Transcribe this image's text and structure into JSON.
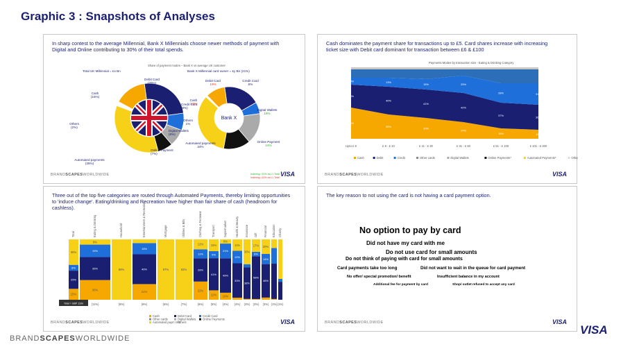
{
  "title": "Graphic 3 : Snapshots of Analyses",
  "brand": {
    "pre": "BRAND",
    "mid": "SCAPES",
    "post": "WORLDWIDE",
    "visa": "VISA"
  },
  "panel1": {
    "text": "In sharp contest to the average Millennial, Bank X Millennials choose newer methods of payment with Digital and Online contributing to 30% of their total spends.",
    "subtitle": "Share of payment modes – Bank X vs average UK customer",
    "left_title": "Total UK Millennial = £x Bn",
    "right_title": "Bank X Millennial card owner = £y Bn (21%)",
    "center_label": "Bank X",
    "legend_up": "Indexing ↑10% vs L1 Total",
    "legend_down": "Indexing ↓10% vs L1 Total",
    "left_labels": [
      {
        "name": "Debit Card",
        "val": "(25%)"
      },
      {
        "name": "Credit Card",
        "val": "(8%)"
      },
      {
        "name": "Digital Wallets",
        "val": "(8%)"
      },
      {
        "name": "Online Payment",
        "val": "(7%)"
      },
      {
        "name": "Automated payments",
        "val": "(35%)"
      },
      {
        "name": "Others",
        "val": "(2%)"
      },
      {
        "name": "Cash",
        "val": "(15%)"
      }
    ],
    "right_labels": [
      {
        "name": "Debit Card",
        "val": "19%"
      },
      {
        "name": "Credit Card",
        "val": "6%"
      },
      {
        "name": "Digital Wallets",
        "val": "16%"
      },
      {
        "name": "Online Payment",
        "val": "14%"
      },
      {
        "name": "Automated payments",
        "val": "34%"
      },
      {
        "name": "Others",
        "val": "1%"
      },
      {
        "name": "Cash",
        "val": "10%"
      }
    ]
  },
  "panel2": {
    "text": "Cash dominates the payment share for transactions up to £5. Card shares increase with increasing ticket size with Debit card dominant for transaction between £6 & £100",
    "subtitle": "Payments Modes by transaction size - Eating & Drinking Category",
    "x": [
      "Upto £ 5",
      "£ 6 - £ 10",
      "£ 11 - £ 30",
      "£ 31 - £ 50",
      "£ 51 - £ 100",
      "£ 101 - £ 200"
    ],
    "legend": [
      "Cash",
      "Debit",
      "Credit",
      "Other cards",
      "Digital Wallets",
      "Online Payments*",
      "Automated Payments*",
      "Others*"
    ]
  },
  "chart_data": [
    {
      "type": "pie",
      "title": "Total UK Millennial = £x Bn",
      "categories": [
        "Debit Card",
        "Credit Card",
        "Digital Wallets",
        "Online Payment",
        "Automated payments",
        "Others",
        "Cash"
      ],
      "values": [
        25,
        8,
        8,
        7,
        35,
        2,
        15
      ]
    },
    {
      "type": "pie",
      "title": "Bank X Millennial card owner = £y Bn (21%)",
      "categories": [
        "Debit Card",
        "Credit Card",
        "Digital Wallets",
        "Online Payment",
        "Automated payments",
        "Others",
        "Cash"
      ],
      "values": [
        19,
        6,
        16,
        14,
        34,
        1,
        10
      ]
    },
    {
      "type": "area",
      "title": "Payments Modes by transaction size - Eating & Drinking Category",
      "categories": [
        "Upto £ 5",
        "£ 6 - £ 10",
        "£ 11 - £ 30",
        "£ 31 - £ 50",
        "£ 51 - £ 100",
        "£ 101 - £ 200"
      ],
      "series": [
        {
          "name": "Cash",
          "values": [
            45,
            35,
            30,
            24,
            15,
            13
          ]
        },
        {
          "name": "Debit",
          "values": [
            33,
            40,
            41,
            42,
            37,
            36
          ]
        },
        {
          "name": "Credit",
          "values": [
            10,
            13,
            15,
            25,
            28,
            31
          ]
        },
        {
          "name": "Other cards",
          "values": [
            12,
            12,
            14,
            9,
            20,
            20
          ]
        }
      ],
      "labels": [
        [
          "45%",
          "35%",
          "30%",
          "24%",
          "15%",
          "13%"
        ],
        [
          "33%",
          "40%",
          "41%",
          "42%",
          "37%",
          "36%"
        ],
        [
          "10%",
          "13%",
          "15%",
          "25%",
          "28%",
          "31%"
        ]
      ]
    },
    {
      "type": "bar",
      "title": "",
      "categories": [
        "Total",
        "Eating & Drinking",
        "Household",
        "Entertainment & Recreation",
        "Mortgage",
        "Utilities & Bills",
        "Clothing & Footwear",
        "Transport",
        "Supermarket",
        "Health & Beauty",
        "Insurance",
        "Gift",
        "Financial",
        "Education",
        "Charity"
      ],
      "series": [
        {
          "name": "Cash",
          "values": [
            15,
            30,
            0,
            21,
            0,
            0,
            22,
            12,
            10,
            2,
            1,
            1,
            3,
            1,
            0
          ]
        },
        {
          "name": "Debit Card",
          "values": [
            25,
            35,
            0,
            40,
            0,
            0,
            28,
            41,
            49,
            33,
            38,
            58,
            46,
            45,
            25
          ]
        },
        {
          "name": "Credit Card",
          "values": [
            8,
            19,
            0,
            15,
            0,
            0,
            11,
            9,
            21,
            12,
            4,
            6,
            14,
            20,
            4
          ]
        },
        {
          "name": "Automated payments",
          "values": [
            35,
            8,
            89,
            5,
            97,
            93,
            12,
            15,
            6,
            11,
            30,
            17,
            20,
            11,
            55
          ]
        }
      ],
      "col_totals": [
        "Total = GBP 110n",
        "(11%)",
        "(8%)",
        "(6%)",
        "(6%)",
        "(7%)",
        "(6%)",
        "(5%)",
        "(4%)",
        "(4%)",
        "(3%)",
        "(3%)",
        "(3%)",
        "(1%)",
        "(1%)"
      ],
      "legend": [
        "Cash",
        "Other cards",
        "Automated payments",
        "Debit Card",
        "Digital Wallets",
        "Others",
        "Credit Card",
        "Online Payments"
      ]
    }
  ],
  "panel3": {
    "text": "Three out of the top five categories are routed through Automated Payments, thereby limiting opportunities to 'induce change'. Eating/drinking and Recreation have higher than fair share of cash (headroom for cashless).",
    "total": "Total = GBP 110n"
  },
  "panel4": {
    "text": "The key reason to not using the card is not having a card payment option.",
    "reasons": [
      "No option to pay by card",
      "Did not have my card with me",
      "Do not use card for small amounts",
      "Do not think of paying with card for small amounts",
      "Card payments take too long",
      "Did not want to wait in the queue for card payment",
      "No offer/ special promotion/ benefit",
      "Insufficient balance in my account",
      "Additional fee for payment by card",
      "Shop/ outlet refused to accept any card"
    ]
  }
}
